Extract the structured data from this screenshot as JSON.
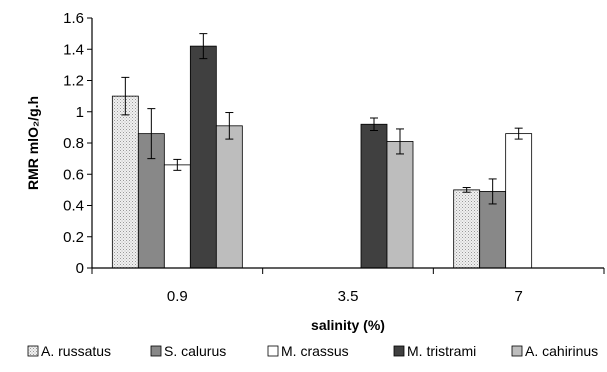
{
  "chart_data": {
    "type": "bar",
    "xlabel": "salinity (%)",
    "ylabel": "RMR mlO₂/g.h",
    "ylim": [
      0,
      1.6
    ],
    "ytick_step": 0.2,
    "ytick_labels": [
      "0",
      "0.2",
      "0.4",
      "0.6",
      "0.8",
      "1",
      "1.2",
      "1.4",
      "1.6"
    ],
    "categories": [
      "0.9",
      "3.5",
      "7"
    ],
    "legend_position": "bottom",
    "series": [
      {
        "name": "A. russatus",
        "color": "#e0e0e0",
        "pattern": "dots",
        "values": [
          1.1,
          null,
          0.5
        ],
        "errors": [
          0.12,
          null,
          0.015
        ]
      },
      {
        "name": "S. calurus",
        "color": "#888888",
        "values": [
          0.86,
          null,
          0.49
        ],
        "errors": [
          0.16,
          null,
          0.08
        ]
      },
      {
        "name": "M. crassus",
        "color": "#ffffff",
        "values": [
          0.66,
          null,
          0.86
        ],
        "errors": [
          0.035,
          null,
          0.035
        ]
      },
      {
        "name": "M. tristrami",
        "color": "#404040",
        "values": [
          1.42,
          0.92,
          null
        ],
        "errors": [
          0.08,
          0.04,
          null
        ]
      },
      {
        "name": "A. cahirinus",
        "color": "#bdbdbd",
        "values": [
          0.91,
          0.81,
          null
        ],
        "errors": [
          0.085,
          0.08,
          null
        ]
      }
    ]
  }
}
